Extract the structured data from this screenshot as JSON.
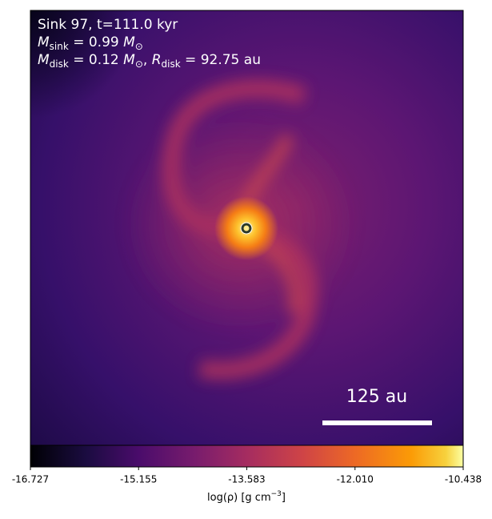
{
  "chart_data": {
    "type": "image",
    "annotations": [
      [
        {
          "text": "Sink 97, t=111.0 kyr"
        }
      ],
      [
        {
          "text": "M"
        },
        {
          "sub": "sink"
        },
        {
          "text": " = 0.99 "
        },
        {
          "text": "M"
        },
        {
          "sub": "⊙"
        }
      ],
      [
        {
          "text": "M"
        },
        {
          "sub": "disk"
        },
        {
          "text": " = 0.12 "
        },
        {
          "text": "M"
        },
        {
          "sub": "⊙"
        },
        {
          "text": ", "
        },
        {
          "text": "R"
        },
        {
          "sub": "disk"
        },
        {
          "text": " = 92.75 au"
        }
      ]
    ],
    "scale_bar_label": "125 au",
    "colorbar": {
      "label": "log(ρ) [g cm",
      "label_sup": "−3",
      "label_end": "]",
      "clim": [
        -16.727,
        -10.438
      ],
      "ticks": [
        -16.727,
        -15.155,
        -13.583,
        {
          "value": -12.01,
          "label": "-12.010"
        },
        -10.438
      ]
    }
  }
}
